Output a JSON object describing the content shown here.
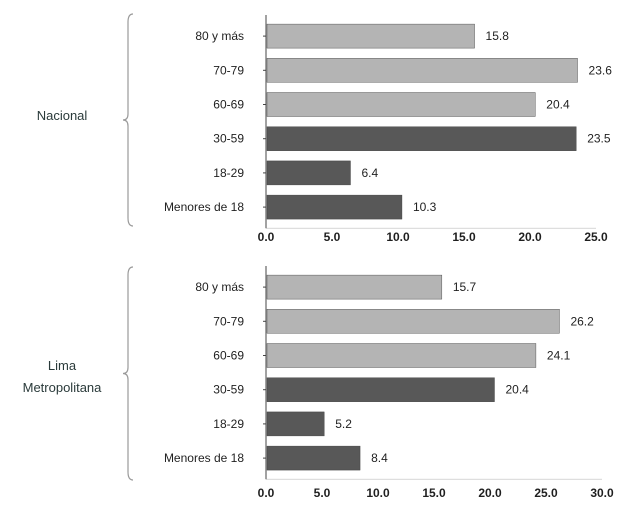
{
  "palette": {
    "light_bar": "#b4b4b4",
    "dark_bar": "#585858",
    "text": "#1f1f1f",
    "axis": "#444444"
  },
  "chart_data": [
    {
      "type": "bar",
      "orientation": "horizontal",
      "group_label": "Nacional",
      "categories": [
        "80 y más",
        "70-79",
        "60-69",
        "30-59",
        "18-29",
        "Menores de 18"
      ],
      "values": [
        15.8,
        23.6,
        20.4,
        23.5,
        6.4,
        10.3
      ],
      "value_labels": [
        "15.8",
        "23.6",
        "20.4",
        "23.5",
        "6.4",
        "10.3"
      ],
      "bar_shades": [
        "light",
        "light",
        "light",
        "dark",
        "dark",
        "dark"
      ],
      "xlim": [
        0,
        25
      ],
      "x_ticks": [
        "0.0",
        "5.0",
        "10.0",
        "15.0",
        "20.0",
        "25.0"
      ],
      "grid": false,
      "legend": "none"
    },
    {
      "type": "bar",
      "orientation": "horizontal",
      "group_label": "Lima Metropolitana",
      "categories": [
        "80 y más",
        "70-79",
        "60-69",
        "30-59",
        "18-29",
        "Menores de 18"
      ],
      "values": [
        15.7,
        26.2,
        24.1,
        20.4,
        5.2,
        8.4
      ],
      "value_labels": [
        "15.7",
        "26.2",
        "24.1",
        "20.4",
        "5.2",
        "8.4"
      ],
      "bar_shades": [
        "light",
        "light",
        "light",
        "dark",
        "dark",
        "dark"
      ],
      "xlim": [
        0,
        30
      ],
      "x_ticks": [
        "0.0",
        "5.0",
        "10.0",
        "15.0",
        "20.0",
        "25.0",
        "30.0"
      ],
      "grid": false,
      "legend": "none"
    }
  ]
}
